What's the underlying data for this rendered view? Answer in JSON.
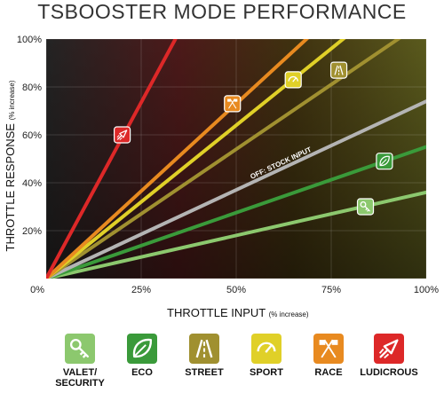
{
  "chart_data": {
    "type": "line",
    "title": "TSBOOSTER MODE PERFORMANCE",
    "xlabel": "THROTTLE INPUT",
    "xlabel_unit": "(% increase)",
    "ylabel": "THROTTLE RESPONSE",
    "ylabel_unit": "(% increase)",
    "xlim": [
      0,
      100
    ],
    "ylim": [
      0,
      100
    ],
    "x_ticks": [
      "0%",
      "25%",
      "50%",
      "75%",
      "100%"
    ],
    "y_ticks": [
      "20%",
      "40%",
      "60%",
      "80%",
      "100%"
    ],
    "grid": true,
    "series": [
      {
        "name": "VALET/ SECURITY",
        "color": "#8cc86e",
        "points": [
          [
            0,
            0
          ],
          [
            100,
            36
          ]
        ],
        "icon": "key-icon",
        "icon_at": [
          84,
          30
        ]
      },
      {
        "name": "ECO",
        "color": "#3a9a3a",
        "points": [
          [
            0,
            0
          ],
          [
            100,
            55
          ]
        ],
        "icon": "leaf-icon",
        "icon_at": [
          89,
          49
        ]
      },
      {
        "name": "OFF: STOCK INPUT",
        "color": "#b4b4b4",
        "points": [
          [
            0,
            0
          ],
          [
            100,
            74
          ]
        ],
        "icon": "",
        "icon_at": null
      },
      {
        "name": "STREET",
        "color": "#a09030",
        "points": [
          [
            0,
            0
          ],
          [
            100,
            108
          ]
        ],
        "icon": "road-icon",
        "icon_at": [
          77,
          87
        ]
      },
      {
        "name": "SPORT",
        "color": "#e0d028",
        "points": [
          [
            0,
            0
          ],
          [
            100,
            128
          ]
        ],
        "icon": "speedometer-icon",
        "icon_at": [
          65,
          83
        ]
      },
      {
        "name": "RACE",
        "color": "#e88a20",
        "points": [
          [
            0,
            0
          ],
          [
            100,
            146
          ]
        ],
        "icon": "checkered-flags-icon",
        "icon_at": [
          49,
          73
        ]
      },
      {
        "name": "LUDICROUS",
        "color": "#dd2828",
        "points": [
          [
            0,
            0
          ],
          [
            34,
            100
          ]
        ],
        "icon": "rocket-icon",
        "icon_at": [
          20,
          60
        ]
      }
    ],
    "stock_annotation": "OFF: STOCK INPUT"
  },
  "legend": [
    {
      "label_lines": [
        "VALET/",
        "SECURITY"
      ],
      "color": "#8cc86e",
      "icon": "key-icon"
    },
    {
      "label_lines": [
        "ECO"
      ],
      "color": "#3a9a3a",
      "icon": "leaf-icon"
    },
    {
      "label_lines": [
        "STREET"
      ],
      "color": "#a09030",
      "icon": "road-icon"
    },
    {
      "label_lines": [
        "SPORT"
      ],
      "color": "#e0d028",
      "icon": "speedometer-icon"
    },
    {
      "label_lines": [
        "RACE"
      ],
      "color": "#e88a20",
      "icon": "checkered-flags-icon"
    },
    {
      "label_lines": [
        "LUDICROUS"
      ],
      "color": "#dd2828",
      "icon": "rocket-icon"
    }
  ]
}
